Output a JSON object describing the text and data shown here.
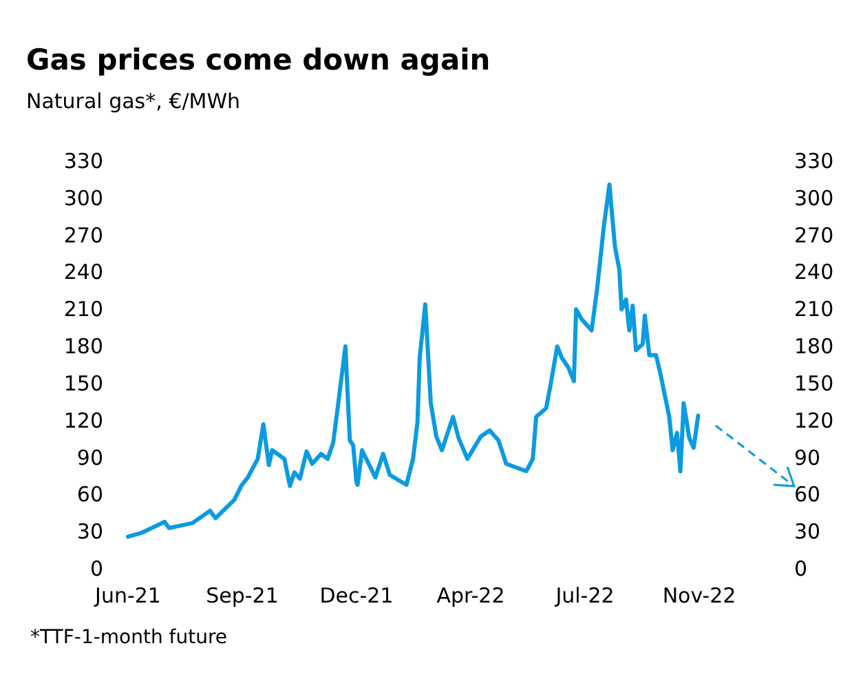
{
  "chart_data": {
    "type": "line",
    "title": "Gas prices come down again",
    "subtitle": "Natural gas*, €/MWh",
    "annotations": [
      "*TTF-1-month future"
    ],
    "x": [
      "2021-06-05",
      "2021-06-17",
      "2021-07-08",
      "2021-07-12",
      "2021-08-02",
      "2021-08-18",
      "2021-08-23",
      "2021-09-09",
      "2021-09-15",
      "2021-09-21",
      "2021-09-30",
      "2021-10-05",
      "2021-10-10",
      "2021-10-13",
      "2021-10-24",
      "2021-10-29",
      "2021-11-02",
      "2021-11-07",
      "2021-11-13",
      "2021-11-18",
      "2021-11-26",
      "2021-12-02",
      "2021-12-07",
      "2021-12-11",
      "2021-12-18",
      "2021-12-22",
      "2021-12-25",
      "2021-12-28",
      "2021-12-29",
      "2022-01-02",
      "2022-01-14",
      "2022-01-21",
      "2022-01-27",
      "2022-02-11",
      "2022-02-17",
      "2022-02-21",
      "2022-02-23",
      "2022-02-28",
      "2022-03-05",
      "2022-03-10",
      "2022-03-15",
      "2022-03-25",
      "2022-03-30",
      "2022-04-07",
      "2022-04-19",
      "2022-04-27",
      "2022-05-05",
      "2022-05-12",
      "2022-05-30",
      "2022-06-05",
      "2022-06-08",
      "2022-06-17",
      "2022-06-21",
      "2022-06-27",
      "2022-07-01",
      "2022-07-07",
      "2022-07-12",
      "2022-07-14",
      "2022-07-19",
      "2022-07-28",
      "2022-08-02",
      "2022-08-08",
      "2022-08-13",
      "2022-08-18",
      "2022-08-22",
      "2022-08-24",
      "2022-08-28",
      "2022-08-31",
      "2022-09-03",
      "2022-09-06",
      "2022-09-12",
      "2022-09-14",
      "2022-09-18",
      "2022-09-24",
      "2022-09-28",
      "2022-10-06",
      "2022-10-09",
      "2022-10-13",
      "2022-10-16",
      "2022-10-19",
      "2022-10-24",
      "2022-10-28",
      "2022-11-01"
    ],
    "series": [
      {
        "color": "#0a9be0",
        "values": [
          26,
          29,
          38,
          33,
          37,
          47,
          41,
          56,
          67,
          74,
          89,
          117,
          84,
          96,
          89,
          67,
          78,
          73,
          95,
          85,
          93,
          89,
          102,
          130,
          180,
          104,
          100,
          70,
          68,
          96,
          74,
          93,
          76,
          68,
          89,
          119,
          171,
          214,
          134,
          107,
          96,
          123,
          106,
          89,
          107,
          112,
          104,
          85,
          79,
          89,
          123,
          130,
          149,
          180,
          171,
          163,
          152,
          210,
          202,
          193,
          227,
          277,
          311,
          261,
          242,
          210,
          218,
          193,
          213,
          177,
          182,
          205,
          173,
          173,
          158,
          123,
          96,
          110,
          79,
          134,
          106,
          98,
          124
        ]
      }
    ],
    "xlim": [
      "2021-06-05",
      "2022-11-02"
    ],
    "xticks": [
      {
        "value": "2021-06-05",
        "label": "Jun-21"
      },
      {
        "value": "2021-09-16",
        "label": "Sep-21"
      },
      {
        "value": "2021-12-28",
        "label": "Dec-21"
      },
      {
        "value": "2022-04-10",
        "label": "Apr-22"
      },
      {
        "value": "2022-07-22",
        "label": "Jul-22"
      },
      {
        "value": "2022-11-02",
        "label": "Nov-22"
      }
    ],
    "ylim": [
      0,
      330
    ],
    "yticks": [
      0,
      30,
      60,
      90,
      120,
      150,
      180,
      210,
      240,
      270,
      300,
      330
    ],
    "y2lim": [
      0,
      330
    ],
    "y2ticks": [
      0,
      30,
      60,
      90,
      120,
      150,
      180,
      210,
      240,
      270,
      300,
      330
    ],
    "grid": false,
    "marker": "none",
    "line_style": "solid"
  }
}
